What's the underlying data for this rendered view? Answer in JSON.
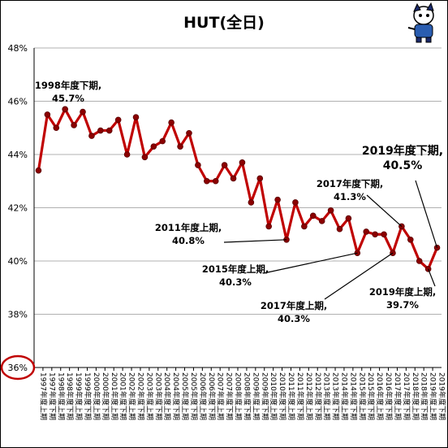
{
  "chart_data": {
    "type": "line",
    "title": "HUT(全日)",
    "xlabel": "",
    "ylabel": "",
    "ylim": [
      36,
      48
    ],
    "yticks": [
      "36%",
      "38%",
      "40%",
      "42%",
      "44%",
      "46%",
      "48%"
    ],
    "grid": true,
    "legend": "none",
    "colors": {
      "line": "#c00000",
      "marker": "#8b0000",
      "grid": "#b0b0b0",
      "highlight": "#c00000"
    },
    "categories": [
      "1997年度上期",
      "1997年度下期",
      "1998年度上期",
      "1998年度下期",
      "1999年度上期",
      "1999年度下期",
      "2000年度上期",
      "2000年度下期",
      "2001年度上期",
      "2001年度下期",
      "2002年度上期",
      "2002年度下期",
      "2003年度上期",
      "2003年度下期",
      "2004年度上期",
      "2004年度下期",
      "2005年度上期",
      "2005年度下期",
      "2006年度上期",
      "2006年度下期",
      "2007年度上期",
      "2007年度下期",
      "2008年度上期",
      "2008年度下期",
      "2009年度上期",
      "2009年度下期",
      "2010年度上期",
      "2010年度下期",
      "2011年度上期",
      "2011年度下期",
      "2012年度上期",
      "2012年度下期",
      "2013年度上期",
      "2013年度下期",
      "2014年度上期",
      "2014年度下期",
      "2015年度上期",
      "2015年度下期",
      "2016年度上期",
      "2016年度下期",
      "2017年度上期",
      "2017年度下期",
      "2018年度上期",
      "2018年度下期",
      "2019年度上期",
      "2019年度下期"
    ],
    "series": [
      {
        "values": [
          43.4,
          45.5,
          45.0,
          45.7,
          45.1,
          45.6,
          44.7,
          44.9,
          44.9,
          45.3,
          44.0,
          45.4,
          43.9,
          44.3,
          44.5,
          45.2,
          44.3,
          44.8,
          43.6,
          43.0,
          43.0,
          43.6,
          43.1,
          43.7,
          42.2,
          43.1,
          41.3,
          42.3,
          40.8,
          42.2,
          41.3,
          41.7,
          41.5,
          41.9,
          41.2,
          41.6,
          40.3,
          41.1,
          41.0,
          41.0,
          40.3,
          41.3,
          40.8,
          40.0,
          39.7,
          40.5
        ]
      }
    ],
    "annotations": [
      {
        "label": "1998年度下期,",
        "value": "45.7%",
        "index": 3,
        "size": "normal"
      },
      {
        "label": "2011年度上期,",
        "value": "40.8%",
        "index": 28,
        "size": "normal"
      },
      {
        "label": "2015年度上期,",
        "value": "40.3%",
        "index": 36,
        "size": "normal"
      },
      {
        "label": "2017年度上期,",
        "value": "40.3%",
        "index": 40,
        "size": "normal"
      },
      {
        "label": "2017年度下期,",
        "value": "41.3%",
        "index": 41,
        "size": "normal"
      },
      {
        "label": "2019年度上期,",
        "value": "39.7%",
        "index": 44,
        "size": "normal"
      },
      {
        "label": "2019年度下期,",
        "value": "40.5%",
        "index": 45,
        "size": "big"
      }
    ],
    "highlight": {
      "tick": "36%",
      "shape": "ellipse"
    },
    "mascot": {
      "icon": "cartoon-mascot-icon"
    }
  }
}
